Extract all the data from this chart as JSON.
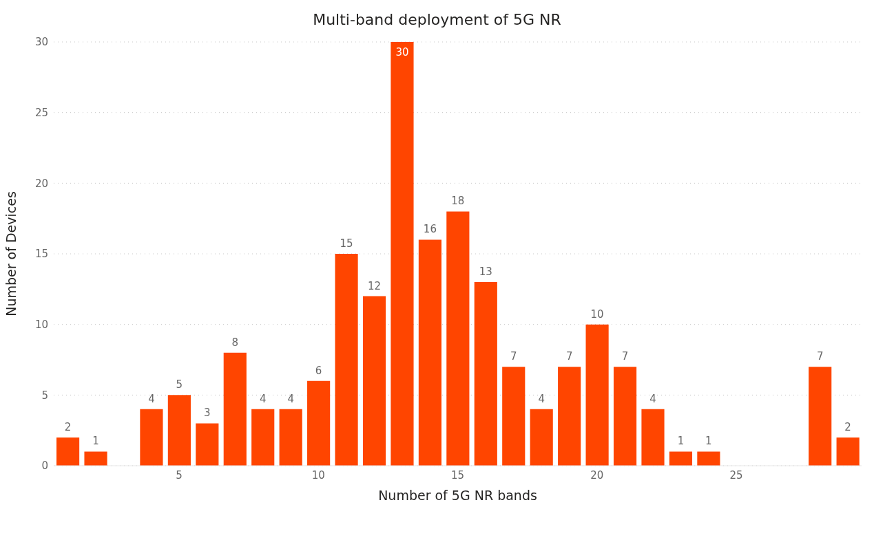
{
  "chart_data": {
    "type": "bar",
    "title": "Multi-band deployment of 5G NR",
    "xlabel": "Number of 5G NR bands",
    "ylabel": "Number of Devices",
    "x": [
      1,
      2,
      4,
      5,
      6,
      7,
      8,
      9,
      10,
      11,
      12,
      13,
      14,
      15,
      16,
      17,
      18,
      19,
      20,
      21,
      22,
      23,
      24,
      28,
      29
    ],
    "values": [
      2,
      1,
      4,
      5,
      3,
      8,
      4,
      4,
      6,
      15,
      12,
      30,
      16,
      18,
      13,
      7,
      4,
      7,
      10,
      7,
      4,
      1,
      1,
      7,
      2
    ],
    "color": "#ff4500",
    "xlim": [
      0.5,
      29.5
    ],
    "xticks": [
      5,
      10,
      15,
      20,
      25
    ],
    "ylim": [
      0,
      30
    ],
    "yticks": [
      0,
      5,
      10,
      15,
      20,
      25,
      30
    ],
    "grid": "y",
    "data_labels": true
  }
}
